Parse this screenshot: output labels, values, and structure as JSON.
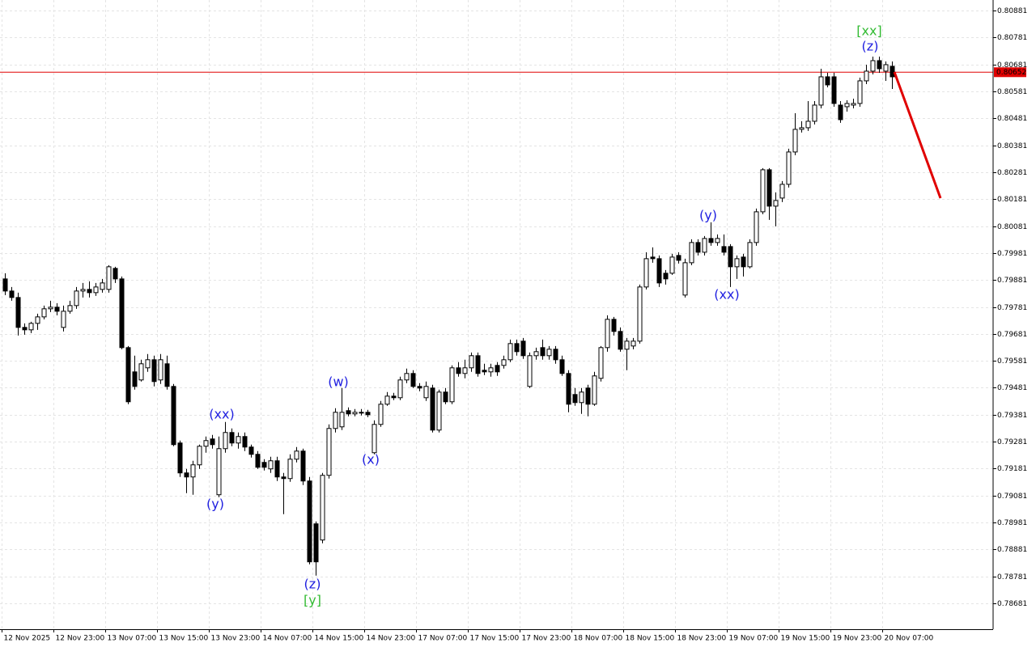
{
  "chart_data": {
    "type": "candlestick",
    "categories": [
      "12 Nov 2025",
      null,
      null,
      null,
      null,
      null,
      null,
      null,
      "12 Nov 23:00",
      null,
      null,
      null,
      null,
      null,
      null,
      null,
      "13 Nov 07:00",
      null,
      null,
      null,
      null,
      null,
      null,
      null,
      "13 Nov 15:00",
      null,
      null,
      null,
      null,
      null,
      null,
      null,
      "13 Nov 23:00",
      null,
      null,
      null,
      null,
      null,
      null,
      null,
      "14 Nov 07:00",
      null,
      null,
      null,
      null,
      null,
      null,
      null,
      "14 Nov 15:00",
      null,
      null,
      null,
      null,
      null,
      null,
      null,
      "14 Nov 23:00",
      null,
      null,
      null,
      null,
      null,
      null,
      null,
      "17 Nov 07:00",
      null,
      null,
      null,
      null,
      null,
      null,
      null,
      "17 Nov 15:00",
      null,
      null,
      null,
      null,
      null,
      null,
      null,
      "17 Nov 23:00",
      null,
      null,
      null,
      null,
      null,
      null,
      null,
      "18 Nov 07:00",
      null,
      null,
      null,
      null,
      null,
      null,
      null,
      "18 Nov 15:00",
      null,
      null,
      null,
      null,
      null,
      null,
      null,
      "18 Nov 23:00",
      null,
      null,
      null,
      null,
      null,
      null,
      null,
      "19 Nov 07:00",
      null,
      null,
      null,
      null,
      null,
      null,
      null,
      "19 Nov 15:00",
      null,
      null,
      null,
      null,
      null,
      null,
      null,
      "19 Nov 23:00",
      null,
      null,
      null,
      null,
      null,
      null,
      null,
      "20 Nov 07:00",
      null
    ],
    "open": [
      0.79885,
      0.7984,
      0.79816,
      0.79705,
      0.79696,
      0.7972,
      0.79744,
      0.79774,
      0.7978,
      0.79705,
      0.79765,
      0.79786,
      0.7984,
      0.79846,
      0.79834,
      0.79846,
      0.79846,
      0.79924,
      0.79885,
      0.7963,
      0.7954,
      0.7951,
      0.79555,
      0.79585,
      0.7951,
      0.7957,
      0.79486,
      0.79276,
      0.79165,
      0.7915,
      0.79195,
      0.79264,
      0.79291,
      0.79084,
      0.79255,
      0.79315,
      0.79276,
      0.793,
      0.79261,
      0.79234,
      0.79204,
      0.7918,
      0.7921,
      0.7915,
      0.79144,
      0.79216,
      0.79246,
      0.79135,
      0.78976,
      0.78916,
      0.79156,
      0.7933,
      0.79336,
      0.79396,
      0.79384,
      0.7939,
      0.7939,
      0.7924,
      0.79345,
      0.7942,
      0.7945,
      0.79444,
      0.7951,
      0.79534,
      0.79486,
      0.79444,
      0.7948,
      0.79324,
      0.79465,
      0.79429,
      0.79555,
      0.79534,
      0.79555,
      0.796,
      0.79546,
      0.7954,
      0.79564,
      0.79564,
      0.79585,
      0.79645,
      0.79654,
      0.79486,
      0.796,
      0.7963,
      0.796,
      0.79624,
      0.79585,
      0.79534,
      0.79456,
      0.79426,
      0.7948,
      0.7942,
      0.79516,
      0.7963,
      0.79735,
      0.7969,
      0.79624,
      0.79636,
      0.79654,
      0.79855,
      0.79966,
      0.7996,
      0.79906,
      0.79906,
      0.79972,
      0.79825,
      0.79945,
      0.8002,
      0.79984,
      0.80035,
      0.8002,
      0.80005,
      0.80005,
      0.7993,
      0.79966,
      0.7993,
      0.8002,
      0.80134,
      0.8029,
      0.80155,
      0.80185,
      0.80236,
      0.80356,
      0.8044,
      0.80446,
      0.8047,
      0.8053,
      0.80635,
      0.80635,
      0.8053,
      0.80524,
      0.8053,
      0.80536,
      0.8062,
      0.80656,
      0.80695,
      0.80656,
      0.80674
    ],
    "high": [
      0.79906,
      0.79855,
      0.79834,
      0.7972,
      0.79726,
      0.79756,
      0.79786,
      0.79804,
      0.79795,
      0.79786,
      0.79804,
      0.79855,
      0.7987,
      0.79876,
      0.7987,
      0.79885,
      0.79936,
      0.7993,
      0.79894,
      0.79636,
      0.796,
      0.79585,
      0.79606,
      0.796,
      0.79606,
      0.796,
      0.79495,
      0.79285,
      0.7918,
      0.7921,
      0.7927,
      0.793,
      0.79306,
      0.793,
      0.79354,
      0.7933,
      0.79315,
      0.79315,
      0.7927,
      0.79246,
      0.79216,
      0.79225,
      0.79225,
      0.79165,
      0.79234,
      0.79261,
      0.79255,
      0.7915,
      0.78985,
      0.79165,
      0.79345,
      0.79405,
      0.7948,
      0.79408,
      0.79402,
      0.79402,
      0.79399,
      0.7936,
      0.79432,
      0.79465,
      0.79462,
      0.79522,
      0.79552,
      0.79546,
      0.79498,
      0.79504,
      0.79492,
      0.79474,
      0.7948,
      0.79564,
      0.79576,
      0.79585,
      0.79612,
      0.79612,
      0.7957,
      0.7957,
      0.79576,
      0.796,
      0.7966,
      0.7966,
      0.79666,
      0.79612,
      0.7963,
      0.7966,
      0.79636,
      0.79636,
      0.796,
      0.79546,
      0.7948,
      0.7948,
      0.79492,
      0.7954,
      0.79636,
      0.7975,
      0.79744,
      0.79705,
      0.79666,
      0.79666,
      0.79864,
      0.79984,
      0.80002,
      0.79972,
      0.79918,
      0.79978,
      0.79984,
      0.7996,
      0.80032,
      0.80032,
      0.80044,
      0.80095,
      0.8005,
      0.8005,
      0.80014,
      0.79972,
      0.79978,
      0.80032,
      0.80146,
      0.80296,
      0.80296,
      0.80206,
      0.80248,
      0.80368,
      0.805,
      0.8047,
      0.80545,
      0.80545,
      0.80665,
      0.8065,
      0.8065,
      0.80545,
      0.80548,
      0.80554,
      0.80632,
      0.8068,
      0.8071,
      0.8071,
      0.80692,
      0.80692
    ],
    "low": [
      0.79825,
      0.79804,
      0.79675,
      0.79678,
      0.79684,
      0.79696,
      0.79735,
      0.79762,
      0.7975,
      0.7969,
      0.79756,
      0.79774,
      0.79816,
      0.79816,
      0.79822,
      0.79834,
      0.79834,
      0.7987,
      0.79624,
      0.7942,
      0.79474,
      0.79504,
      0.7954,
      0.79486,
      0.79495,
      0.79474,
      0.79264,
      0.7915,
      0.7909,
      0.79084,
      0.7918,
      0.7924,
      0.79255,
      0.79075,
      0.7924,
      0.79264,
      0.79255,
      0.79246,
      0.79222,
      0.7918,
      0.79174,
      0.79165,
      0.79135,
      0.79012,
      0.79132,
      0.79204,
      0.7912,
      0.78826,
      0.78784,
      0.78904,
      0.79144,
      0.79315,
      0.79324,
      0.79375,
      0.79375,
      0.79378,
      0.79372,
      0.79234,
      0.79336,
      0.79414,
      0.79435,
      0.79435,
      0.79498,
      0.7948,
      0.79468,
      0.79432,
      0.79315,
      0.79315,
      0.7942,
      0.7942,
      0.79522,
      0.79516,
      0.7954,
      0.79522,
      0.79528,
      0.79522,
      0.79525,
      0.79552,
      0.79576,
      0.796,
      0.79588,
      0.7948,
      0.79585,
      0.79585,
      0.79585,
      0.7957,
      0.79525,
      0.7939,
      0.79414,
      0.79384,
      0.79375,
      0.79414,
      0.79504,
      0.79615,
      0.79675,
      0.79615,
      0.79546,
      0.79624,
      0.79645,
      0.79846,
      0.79945,
      0.79855,
      0.79864,
      0.799,
      0.79942,
      0.79816,
      0.79936,
      0.79972,
      0.79972,
      0.80008,
      0.80008,
      0.79972,
      0.79855,
      0.79885,
      0.79894,
      0.79924,
      0.80008,
      0.80125,
      0.80104,
      0.8008,
      0.8017,
      0.80224,
      0.80344,
      0.80428,
      0.80434,
      0.80458,
      0.80518,
      0.80596,
      0.80524,
      0.80464,
      0.80506,
      0.80518,
      0.80524,
      0.80608,
      0.80644,
      0.8065,
      0.8062,
      0.8059
    ],
    "close": [
      0.7984,
      0.79816,
      0.79705,
      0.79696,
      0.7972,
      0.79744,
      0.79774,
      0.7978,
      0.79765,
      0.79765,
      0.79786,
      0.7984,
      0.79846,
      0.79834,
      0.79855,
      0.7987,
      0.7993,
      0.79885,
      0.7963,
      0.79429,
      0.79486,
      0.7957,
      0.79585,
      0.79504,
      0.79585,
      0.79486,
      0.7927,
      0.79165,
      0.7915,
      0.79195,
      0.79264,
      0.79285,
      0.7927,
      0.79255,
      0.79315,
      0.79276,
      0.793,
      0.79261,
      0.79234,
      0.79186,
      0.79186,
      0.7921,
      0.7915,
      0.79144,
      0.79216,
      0.79246,
      0.79135,
      0.78835,
      0.78835,
      0.79156,
      0.7933,
      0.7939,
      0.7939,
      0.79384,
      0.7939,
      0.7939,
      0.79381,
      0.79345,
      0.7942,
      0.7945,
      0.79444,
      0.7951,
      0.79534,
      0.79486,
      0.7948,
      0.79486,
      0.79324,
      0.79465,
      0.79429,
      0.79555,
      0.79534,
      0.79555,
      0.796,
      0.79534,
      0.7954,
      0.79555,
      0.7954,
      0.79585,
      0.79645,
      0.79615,
      0.796,
      0.796,
      0.79615,
      0.796,
      0.79624,
      0.79585,
      0.79534,
      0.7942,
      0.79426,
      0.79465,
      0.7942,
      0.79525,
      0.7963,
      0.79735,
      0.7969,
      0.79624,
      0.79654,
      0.79654,
      0.79855,
      0.7996,
      0.7996,
      0.7987,
      0.79885,
      0.79966,
      0.79954,
      0.79945,
      0.8002,
      0.79984,
      0.80035,
      0.8002,
      0.80035,
      0.79984,
      0.7993,
      0.7996,
      0.7993,
      0.8002,
      0.80134,
      0.8029,
      0.80155,
      0.80176,
      0.80236,
      0.80356,
      0.8044,
      0.80446,
      0.8047,
      0.8053,
      0.80635,
      0.80605,
      0.80536,
      0.80476,
      0.80536,
      0.80536,
      0.8062,
      0.80656,
      0.80695,
      0.80665,
      0.8068,
      0.80635
    ],
    "up_color": "#ffffff",
    "down_color": "#000000",
    "wick_color": "#000000",
    "current_price": 0.80652,
    "current_price_color": "#e00000",
    "ylim": [
      0.78585,
      0.8092
    ],
    "yticks": [
      0.80881,
      0.80781,
      0.80681,
      0.80581,
      0.80481,
      0.80381,
      0.80281,
      0.80181,
      0.80081,
      0.79981,
      0.79881,
      0.79781,
      0.79681,
      0.79581,
      0.79481,
      0.79381,
      0.79281,
      0.79181,
      0.79081,
      0.78981,
      0.78881,
      0.78781,
      0.78681
    ],
    "grid": true,
    "annotations": [
      {
        "text": "(xx)",
        "color": "#2020e0"
      },
      {
        "text": "(y)",
        "color": "#2020e0"
      },
      {
        "text": "(z)",
        "color": "#2020e0"
      },
      {
        "text": "[y]",
        "color": "#33bb33"
      },
      {
        "text": "(w)",
        "color": "#2020e0"
      },
      {
        "text": "(x)",
        "color": "#2020e0"
      },
      {
        "text": "(y)",
        "color": "#2020e0"
      },
      {
        "text": "(xx)",
        "color": "#2020e0"
      },
      {
        "text": "[xx]",
        "color": "#33bb33"
      },
      {
        "text": "(z)",
        "color": "#2020e0"
      }
    ]
  }
}
